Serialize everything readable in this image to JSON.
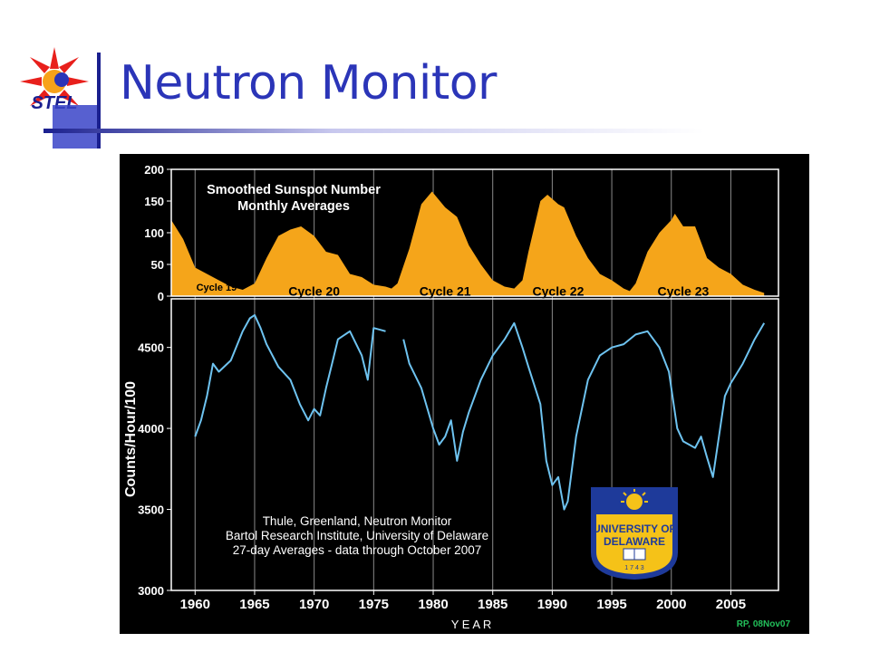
{
  "slide": {
    "title": "Neutron Monitor",
    "logo_text": "STEL",
    "colors": {
      "title": "#2b35b8",
      "accent": "#1a1f8f"
    }
  },
  "chart_data": [
    {
      "type": "area",
      "title": "Smoothed Sunspot Number\nMonthly Averages",
      "ylim": [
        0,
        200
      ],
      "yticks": [
        0,
        50,
        100,
        150,
        200
      ],
      "xlim": [
        1958,
        2009
      ],
      "fill_color": "#f5a51a",
      "annotations": [
        "Cycle 19",
        "Cycle 20",
        "Cycle 21",
        "Cycle 22",
        "Cycle 23"
      ],
      "x": [
        1958.0,
        1959.0,
        1960.0,
        1961.0,
        1962.0,
        1963.0,
        1964.0,
        1965.0,
        1966.0,
        1967.0,
        1968.0,
        1968.9,
        1970.0,
        1971.0,
        1972.0,
        1973.0,
        1974.0,
        1975.0,
        1976.0,
        1976.5,
        1977.0,
        1978.0,
        1979.0,
        1979.9,
        1981.0,
        1982.0,
        1983.0,
        1984.0,
        1985.0,
        1986.0,
        1986.8,
        1987.5,
        1988.0,
        1989.0,
        1989.6,
        1990.5,
        1991.0,
        1992.0,
        1993.0,
        1994.0,
        1995.0,
        1996.0,
        1996.5,
        1997.0,
        1998.0,
        1999.0,
        2000.0,
        2000.3,
        2001.0,
        2002.0,
        2003.0,
        2004.0,
        2005.0,
        2006.0,
        2007.0,
        2007.8
      ],
      "values": [
        120,
        90,
        45,
        35,
        25,
        15,
        10,
        20,
        60,
        95,
        105,
        110,
        95,
        70,
        65,
        35,
        30,
        18,
        15,
        12,
        20,
        75,
        145,
        165,
        140,
        125,
        80,
        50,
        25,
        15,
        12,
        25,
        70,
        150,
        160,
        145,
        140,
        95,
        60,
        35,
        25,
        12,
        8,
        20,
        70,
        100,
        120,
        130,
        110,
        110,
        60,
        45,
        35,
        18,
        10,
        5
      ]
    },
    {
      "type": "line",
      "title": "Thule, Greenland, Neutron Monitor",
      "subtitle": "Bartol Research Institute, University of Delaware",
      "note": "27-day Averages - data through October 2007",
      "xlabel": "Y E A R",
      "ylabel": "Counts/Hour/100",
      "ylim": [
        3000,
        4800
      ],
      "yticks": [
        3000,
        3500,
        4000,
        4500
      ],
      "xlim": [
        1958,
        2009
      ],
      "xticks": [
        1960,
        1965,
        1970,
        1975,
        1980,
        1985,
        1990,
        1995,
        2000,
        2005
      ],
      "line_color": "#6ec3f0",
      "series": [
        {
          "x": [
            1960.0,
            1960.5,
            1961.0,
            1961.5,
            1962.0,
            1963.0,
            1964.0,
            1964.6,
            1965.0,
            1965.5,
            1966.0,
            1967.0,
            1968.0,
            1968.8,
            1969.5,
            1970.0,
            1970.5,
            1971.0,
            1971.5,
            1972.0,
            1973.0,
            1974.0,
            1974.5,
            1975.0,
            1976.0
          ],
          "values": [
            3950,
            4050,
            4200,
            4400,
            4350,
            4420,
            4600,
            4680,
            4700,
            4620,
            4520,
            4380,
            4300,
            4150,
            4050,
            4120,
            4080,
            4250,
            4400,
            4550,
            4600,
            4450,
            4300,
            4620,
            4600
          ]
        },
        {
          "x": [
            1977.5,
            1978.0,
            1979.0,
            1980.0,
            1980.5,
            1981.0,
            1981.5,
            1982.0,
            1982.5,
            1983.0,
            1984.0,
            1985.0,
            1986.0,
            1986.8,
            1987.5,
            1988.0,
            1989.0,
            1989.5,
            1990.0,
            1990.5,
            1991.0,
            1991.3,
            1992.0,
            1993.0,
            1994.0,
            1995.0,
            1996.0,
            1997.0,
            1998.0,
            1999.0,
            1999.8,
            2000.5,
            2001.0,
            2002.0,
            2002.5,
            2003.0,
            2003.5,
            2004.0,
            2004.5,
            2005.0,
            2006.0,
            2007.0,
            2007.8
          ],
          "values": [
            4550,
            4400,
            4250,
            4000,
            3900,
            3950,
            4050,
            3800,
            3980,
            4100,
            4300,
            4450,
            4550,
            4650,
            4500,
            4380,
            4150,
            3800,
            3650,
            3700,
            3500,
            3550,
            3950,
            4300,
            4450,
            4500,
            4520,
            4580,
            4600,
            4500,
            4350,
            4000,
            3920,
            3880,
            3950,
            3820,
            3700,
            3950,
            4200,
            4280,
            4400,
            4550,
            4650
          ]
        }
      ]
    }
  ],
  "credits": {
    "logo_text": "UNIVERSITY OF DELAWARE",
    "logo_year": "1 7 4 3",
    "signature": "RP, 08Nov07"
  }
}
